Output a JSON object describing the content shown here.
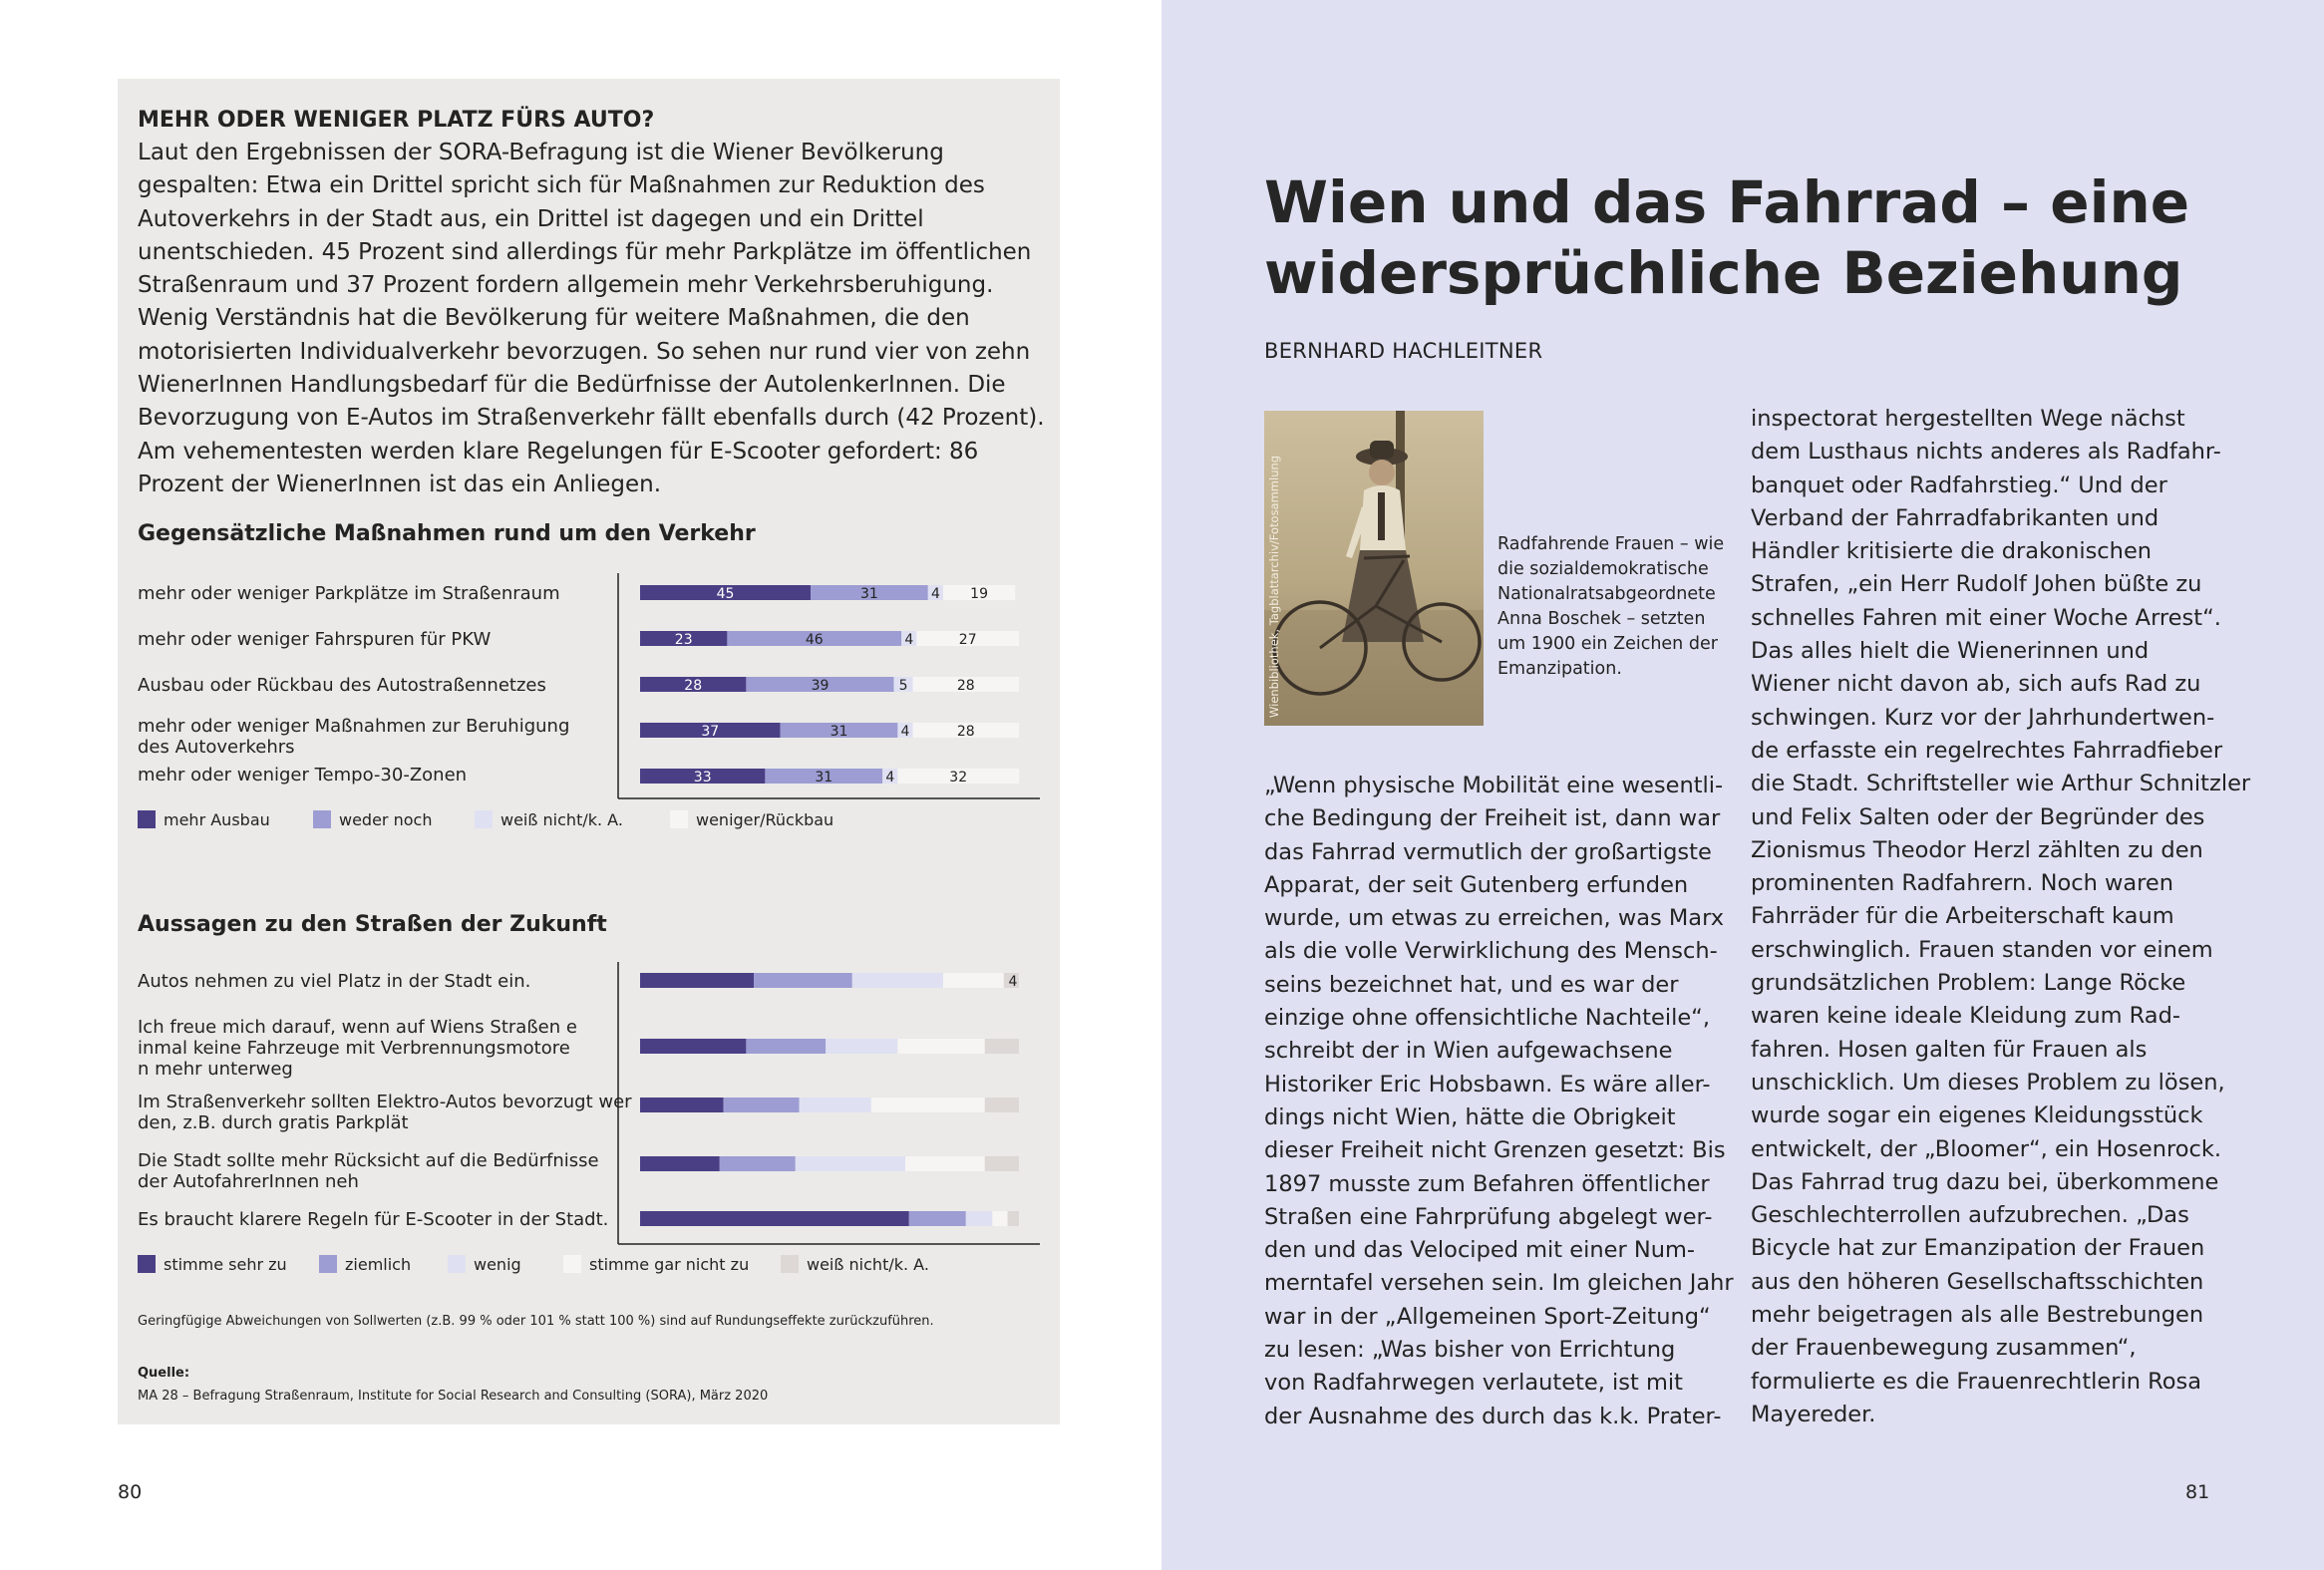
{
  "infobox": {
    "heading": "MEHR ODER WENIGER PLATZ FÜRS AUTO?",
    "body": "Laut den Ergebnissen der SORA-Befragung ist die Wiener Bevölkerung gespalten: Etwa ein Drittel spricht sich für Maßnahmen zur Reduktion des Autoverkehrs in der Stadt aus, ein Drittel ist dagegen und ein Drittel unentschieden. 45 Prozent sind allerdings für mehr Parkplätze im öffentlichen Straßenraum und 37 Prozent fordern allgemein mehr Verkehrsberuhigung. Wenig Verständnis hat die Bevölkerung für weitere Maßnahmen, die den motorisierten Individualverkehr bevorzugen. So sehen nur rund vier von zehn WienerInnen Handlungsbedarf für die Bedürfnisse der AutolenkerInnen. Die Bevorzugung von E-Autos im Straßenverkehr fällt ebenfalls durch (42 Prozent). Am vehementesten werden klare Regelungen für E-Scooter gefordert: 86 Prozent der WienerInnen ist das ein Anliegen.",
    "footnote": "Geringfügige Abweichungen von Sollwerten (z.B. 99 % oder 101 % statt 100 %) sind auf Rundungseffekte zurückzuführen.",
    "source_label": "Quelle:",
    "source_text": "MA 28 – Befragung Straßenraum, Institute for Social Research and Consulting (SORA), März 2020"
  },
  "chart_data": [
    {
      "type": "bar",
      "stacked": true,
      "orientation": "horizontal",
      "title": "Gegensätzliche Maßnahmen rund um den Verkehr",
      "categories": [
        "mehr oder weniger Parkplätze im Straßenraum",
        "mehr oder weniger Fahrspuren für PKW",
        "Ausbau oder Rückbau des Autostraßennetzes",
        "mehr oder weniger Maßnahmen zur Beruhigung des Autoverkehrs",
        "mehr oder weniger Tempo-30-Zonen"
      ],
      "series": [
        {
          "name": "mehr Ausbau",
          "color": "#4a3f85",
          "values": [
            45,
            23,
            28,
            37,
            33
          ]
        },
        {
          "name": "weder noch",
          "color": "#9d9dd3",
          "values": [
            31,
            46,
            39,
            31,
            31
          ]
        },
        {
          "name": "weiß nicht/k. A.",
          "color": "#dfe1f2",
          "values": [
            4,
            4,
            5,
            4,
            4
          ]
        },
        {
          "name": "weniger/Rückbau",
          "color": "#f6f5f4",
          "values": [
            19,
            27,
            28,
            28,
            32
          ]
        }
      ],
      "show_labels": true
    },
    {
      "type": "bar",
      "stacked": true,
      "orientation": "horizontal",
      "title": "Aussagen zu den Straßen der Zukunft",
      "categories": [
        "Autos nehmen zu viel Platz in der Stadt ein.",
        "Ich freue mich darauf, wenn auf Wiens Straßen einmal keine Fahrzeuge mit Verbrennungsmotoren mehr unterwegs sind.",
        "Im Straßenverkehr sollten Elektro-Autos bevorzugt werden, z.B. durch gratis Parkplätze.",
        "Die Stadt sollte mehr Rücksicht auf die Bedürfnisse der AutofahrerInnen nehmen.",
        "Es braucht klarere Regeln für E-Scooter in der Stadt."
      ],
      "series": [
        {
          "name": "stimme sehr zu",
          "color": "#4a3f85",
          "values": [
            30,
            28,
            22,
            21,
            71
          ]
        },
        {
          "name": "ziemlich",
          "color": "#9d9dd3",
          "values": [
            26,
            21,
            20,
            20,
            15
          ]
        },
        {
          "name": "wenig",
          "color": "#dfe1f2",
          "values": [
            24,
            19,
            19,
            29,
            7
          ]
        },
        {
          "name": "stimme gar nicht zu",
          "color": "#f6f5f4",
          "values": [
            16,
            23,
            30,
            21,
            4
          ]
        },
        {
          "name": "weiß nicht/k. A.",
          "color": "#ddd7d5",
          "values": [
            4,
            9,
            9,
            9,
            3
          ]
        }
      ],
      "annotations": [
        "4"
      ],
      "show_labels": false
    }
  ],
  "page_left_number": "80",
  "page_right_number": "81",
  "article": {
    "title_line1": "Wien und das Fahrrad – eine",
    "title_line2": "widersprüchliche Beziehung",
    "author": "BERNHARD HACHLEITNER",
    "photo_credit": "Wienbibliothek, Tagblattarchiv/Fotosammlung",
    "caption": "Radfahrende Frauen – wie die sozialdemokrati­sche Nationalrats­abgeordnete Anna Boschek – setzten um 1900 ein Zeichen der Emanzipation.",
    "col1": [
      "„Wenn physische Mobilität eine wesentli-",
      "che Bedingung der Freiheit ist, dann war",
      "das Fahrrad vermutlich der großartigste",
      "Apparat, der seit Gutenberg erfunden",
      "wurde, um etwas zu erreichen, was Marx",
      "als die volle Verwirklichung des Mensch-",
      "seins bezeichnet hat, und es war der",
      "einzige ohne offensichtliche Nachteile“,",
      "schreibt der in Wien aufgewachsene",
      "Historiker Eric Hobsbawn. Es wäre aller-",
      "dings nicht Wien, hätte die Obrigkeit",
      "dieser Freiheit nicht Grenzen gesetzt: Bis",
      "1897 musste zum Befahren öffentlicher",
      "Straßen eine Fahrprüfung abgelegt wer-",
      "den und das Velociped mit einer Num-",
      "merntafel versehen sein. Im gleichen Jahr",
      "war in der „Allgemeinen Sport-Zeitung“",
      "zu lesen: „Was bisher von Errichtung",
      "von Radfahrwegen verlautete, ist mit",
      "der Ausnahme des durch das k.k. Prater-"
    ],
    "col2": [
      "inspectorat hergestellten Wege nächst",
      "dem Lusthaus nichts anderes als Radfahr-",
      "banquet oder Radfahrstieg.“ Und der",
      "Verband der Fahrradfabrikanten und",
      "Händler kritisierte die drakonischen",
      "Strafen, „ein Herr Rudolf Johen büßte zu",
      "schnelles Fahren mit einer Woche Arrest“.",
      "Das alles hielt die Wienerinnen und",
      "Wiener nicht davon ab, sich aufs Rad zu",
      "schwingen. Kurz vor der Jahrhundertwen-",
      "de erfasste ein regelrechtes Fahrradfieber",
      "die Stadt. Schriftsteller wie Arthur Schnitzler",
      "und Felix Salten oder der Begründer des",
      "Zionismus Theodor Herzl zählten zu den",
      "prominenten Radfahrern. Noch waren",
      "Fahrräder für die Arbeiterschaft kaum",
      "erschwinglich. Frauen standen vor einem",
      "grundsätzlichen Problem: Lange Röcke",
      "waren keine ideale Kleidung zum Rad-",
      "fahren. Hosen galten für Frauen als",
      "unschicklich. Um dieses Problem zu lösen,",
      "wurde sogar ein eigenes Kleidungsstück",
      "entwickelt, der „Bloomer“, ein Hosenrock.",
      "Das Fahrrad trug dazu bei, überkommene",
      "Geschlechterrollen aufzubrechen. „Das",
      "Bicycle hat zur Emanzipation der Frauen",
      "aus den höheren Gesellschaftsschichten",
      "mehr beigetragen als alle Bestrebungen",
      "der Frauenbewegung zusammen“,",
      "formulierte es die Frauenrechtlerin Rosa",
      "Mayereder."
    ]
  }
}
